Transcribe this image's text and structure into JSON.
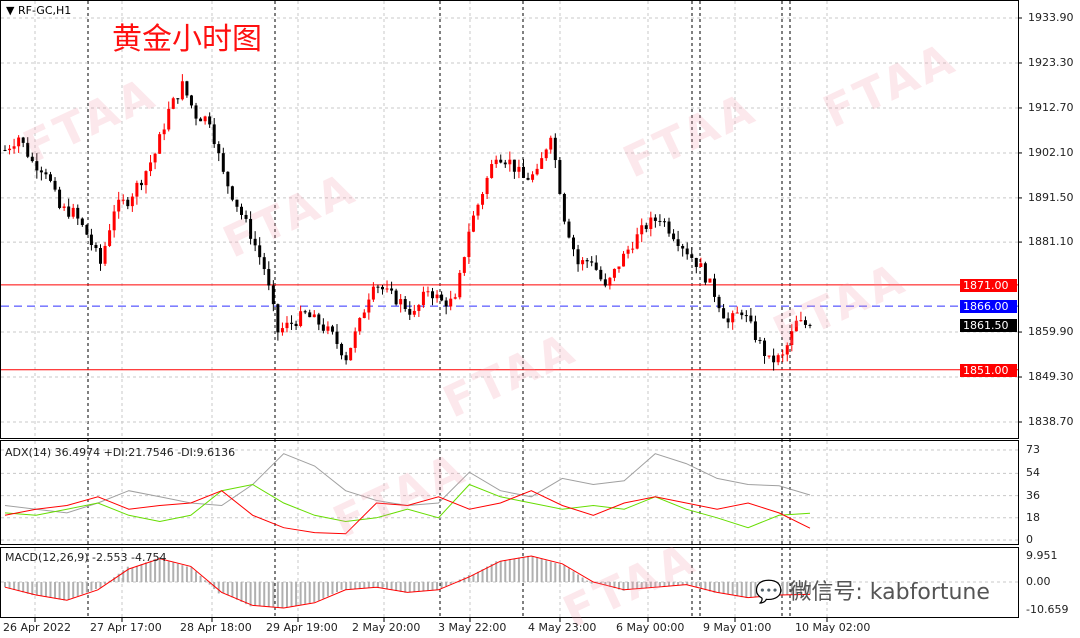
{
  "header": {
    "symbol": "RF-GC,H1",
    "title": "黄金小时图"
  },
  "watermark": {
    "text": "FTAA",
    "wechat": "微信号: kabfortune"
  },
  "colors": {
    "bull": "#ff0000",
    "bear": "#000000",
    "adx": "#a0a0a0",
    "plus_di": "#66dd00",
    "minus_di": "#ff0000",
    "hline": "#ff0000",
    "dash_line": "#0000ff"
  },
  "price_axis": {
    "ticks": [
      "1933.90",
      "1923.30",
      "1912.70",
      "1902.10",
      "1891.50",
      "1881.10",
      "1859.90",
      "1849.30",
      "1838.70"
    ]
  },
  "levels": {
    "resistance": "1871.00",
    "pivot": "1866.00",
    "current": "1861.50",
    "support": "1851.00"
  },
  "adx": {
    "label": "ADX(14) 36.4974 +DI:21.7546 -DI:9.6136",
    "ticks": [
      "73",
      "54",
      "36",
      "18",
      "0"
    ]
  },
  "macd": {
    "label": "MACD(12,26,9) -2.553 -4.754",
    "ticks": [
      "9.951",
      "0.00",
      "-10.659"
    ]
  },
  "time_axis": [
    "26 Apr 2022",
    "27 Apr 17:00",
    "28 Apr 18:00",
    "29 Apr 19:00",
    "2 May 20:00",
    "3 May 22:00",
    "4 May 23:00",
    "6 May 00:00",
    "9 May 01:00",
    "10 May 02:00"
  ],
  "chart_data": {
    "type": "candlestick",
    "close": [
      1902.8,
      1906,
      1900,
      1898,
      1889,
      1888,
      1883,
      1876,
      1889,
      1891,
      1896,
      1902,
      1912,
      1918,
      1911,
      1910,
      1897,
      1890,
      1883,
      1875,
      1860,
      1862,
      1864,
      1862,
      1859,
      1854,
      1862,
      1872,
      1869,
      1867,
      1864,
      1870,
      1867,
      1867,
      1884,
      1893,
      1902,
      1900,
      1896,
      1897,
      1907,
      1887,
      1876,
      1877,
      1870,
      1876,
      1881,
      1885,
      1887,
      1883,
      1879,
      1875,
      1869,
      1862,
      1865,
      1859,
      1853,
      1854,
      1862,
      1861.5
    ],
    "adx": [
      28,
      25,
      22,
      30,
      40,
      35,
      30,
      28,
      45,
      70,
      60,
      40,
      32,
      28,
      30,
      55,
      40,
      35,
      50,
      45,
      48,
      70,
      62,
      50,
      45,
      44,
      36.5
    ],
    "plus_di": [
      22,
      20,
      25,
      30,
      20,
      15,
      20,
      40,
      45,
      30,
      20,
      15,
      18,
      25,
      18,
      45,
      35,
      30,
      25,
      28,
      25,
      35,
      25,
      18,
      10,
      20,
      21.75
    ],
    "minus_di": [
      20,
      25,
      28,
      35,
      25,
      28,
      30,
      40,
      20,
      10,
      6,
      5,
      30,
      28,
      35,
      25,
      30,
      40,
      28,
      20,
      30,
      35,
      30,
      25,
      30,
      22,
      9.6
    ],
    "macd_signal": [
      -2,
      -5,
      -7,
      -3,
      5,
      9,
      6,
      -4,
      -9,
      -10,
      -8,
      -3,
      -2,
      -4,
      -3,
      2,
      8,
      10,
      7,
      0,
      -3,
      -2,
      -1,
      -4,
      -6,
      -5,
      -4.75
    ],
    "ylim": [
      1838.7,
      1933.9
    ]
  }
}
